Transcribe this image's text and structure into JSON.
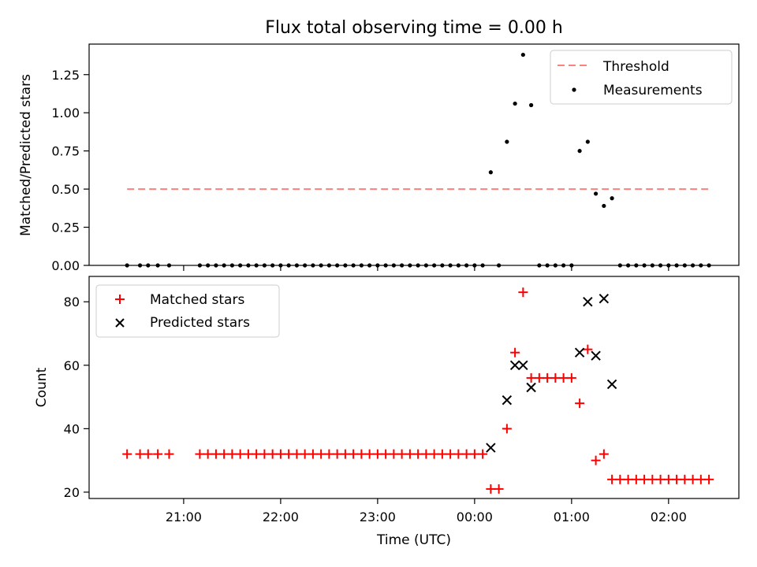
{
  "figure": {
    "title": "Flux total observing time = 0.00 h"
  },
  "chart_data": [
    {
      "type": "scatter",
      "ylabel": "Matched/Predicted stars",
      "xlabel": "",
      "ylim": [
        0,
        1.45
      ],
      "yticks": [
        0.0,
        0.25,
        0.5,
        0.75,
        1.0,
        1.25
      ],
      "ytick_labels": [
        "0.00",
        "0.25",
        "0.50",
        "0.75",
        "1.00",
        "1.25"
      ],
      "legend_position": "top-right",
      "threshold": {
        "name": "Threshold",
        "value": 0.5,
        "x_range": [
          "20:25",
          "02:25"
        ],
        "color": "#ff7f7f"
      },
      "series": [
        {
          "name": "Measurements",
          "color": "#000000",
          "marker": "dot",
          "x": [
            "20:25",
            "20:33",
            "20:38",
            "20:44",
            "20:51",
            "21:10",
            "21:15",
            "21:20",
            "21:25",
            "21:30",
            "21:35",
            "21:40",
            "21:45",
            "21:50",
            "21:55",
            "22:00",
            "22:05",
            "22:10",
            "22:15",
            "22:20",
            "22:25",
            "22:30",
            "22:35",
            "22:40",
            "22:45",
            "22:50",
            "22:55",
            "23:00",
            "23:05",
            "23:10",
            "23:15",
            "23:20",
            "23:25",
            "23:30",
            "23:35",
            "23:40",
            "23:45",
            "23:50",
            "23:55",
            "00:00",
            "00:05",
            "00:10",
            "00:15",
            "00:20",
            "00:25",
            "00:30",
            "00:35",
            "00:40",
            "00:45",
            "00:50",
            "00:55",
            "01:00",
            "01:05",
            "01:10",
            "01:15",
            "01:20",
            "01:25",
            "01:30",
            "01:35",
            "01:40",
            "01:45",
            "01:50",
            "01:55",
            "02:00",
            "02:05",
            "02:10",
            "02:15",
            "02:20",
            "02:25"
          ],
          "y": [
            0,
            0,
            0,
            0,
            0,
            0,
            0,
            0,
            0,
            0,
            0,
            0,
            0,
            0,
            0,
            0,
            0,
            0,
            0,
            0,
            0,
            0,
            0,
            0,
            0,
            0,
            0,
            0,
            0,
            0,
            0,
            0,
            0,
            0,
            0,
            0,
            0,
            0,
            0,
            0,
            0,
            0.61,
            0,
            0.81,
            1.06,
            1.38,
            1.05,
            0,
            0,
            0,
            0,
            0,
            0.75,
            0.81,
            0.47,
            0.39,
            0.44,
            0,
            0,
            0,
            0,
            0,
            0,
            0,
            0,
            0,
            0,
            0,
            0
          ]
        }
      ]
    },
    {
      "type": "scatter",
      "ylabel": "Count",
      "xlabel": "Time (UTC)",
      "ylim": [
        18,
        88
      ],
      "yticks": [
        20,
        40,
        60,
        80
      ],
      "ytick_labels": [
        "20",
        "40",
        "60",
        "80"
      ],
      "x_ticks": [
        "21:00",
        "22:00",
        "23:00",
        "00:00",
        "01:00",
        "02:00"
      ],
      "legend_position": "top-left",
      "series": [
        {
          "name": "Matched stars",
          "color": "#ff0000",
          "marker": "plus",
          "x": [
            "20:25",
            "20:33",
            "20:38",
            "20:44",
            "20:51",
            "21:10",
            "21:15",
            "21:20",
            "21:25",
            "21:30",
            "21:35",
            "21:40",
            "21:45",
            "21:50",
            "21:55",
            "22:00",
            "22:05",
            "22:10",
            "22:15",
            "22:20",
            "22:25",
            "22:30",
            "22:35",
            "22:40",
            "22:45",
            "22:50",
            "22:55",
            "23:00",
            "23:05",
            "23:10",
            "23:15",
            "23:20",
            "23:25",
            "23:30",
            "23:35",
            "23:40",
            "23:45",
            "23:50",
            "23:55",
            "00:00",
            "00:05",
            "00:10",
            "00:15",
            "00:20",
            "00:25",
            "00:30",
            "00:35",
            "00:40",
            "00:45",
            "00:50",
            "00:55",
            "01:00",
            "01:05",
            "01:10",
            "01:15",
            "01:20",
            "01:25",
            "01:30",
            "01:35",
            "01:40",
            "01:45",
            "01:50",
            "01:55",
            "02:00",
            "02:05",
            "02:10",
            "02:15",
            "02:20",
            "02:25"
          ],
          "y": [
            32,
            32,
            32,
            32,
            32,
            32,
            32,
            32,
            32,
            32,
            32,
            32,
            32,
            32,
            32,
            32,
            32,
            32,
            32,
            32,
            32,
            32,
            32,
            32,
            32,
            32,
            32,
            32,
            32,
            32,
            32,
            32,
            32,
            32,
            32,
            32,
            32,
            32,
            32,
            32,
            32,
            21,
            21,
            40,
            64,
            83,
            56,
            56,
            56,
            56,
            56,
            56,
            48,
            65,
            30,
            32,
            24,
            24,
            24,
            24,
            24,
            24,
            24,
            24,
            24,
            24,
            24,
            24,
            24
          ]
        },
        {
          "name": "Predicted stars",
          "color": "#000000",
          "marker": "x",
          "x": [
            "00:10",
            "00:20",
            "00:25",
            "00:30",
            "00:35",
            "01:05",
            "01:10",
            "01:15",
            "01:20",
            "01:25"
          ],
          "y": [
            34,
            49,
            60,
            60,
            53,
            64,
            80,
            63,
            81,
            54
          ]
        }
      ]
    }
  ]
}
